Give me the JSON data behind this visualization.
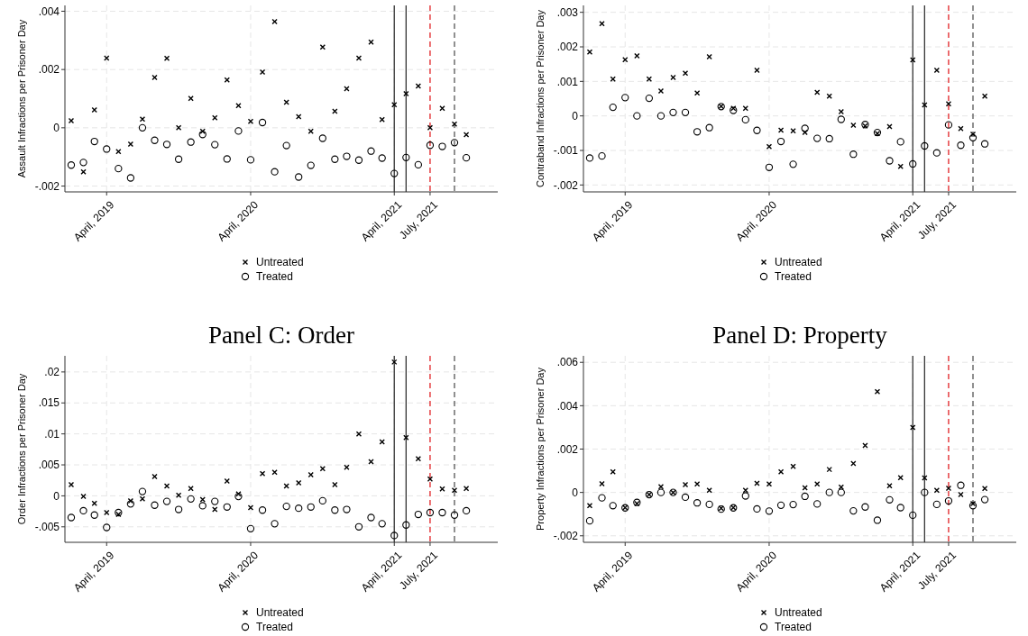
{
  "chart_data": [
    {
      "type": "scatter",
      "ylabel": "Assault Infractions per Prisoner Day",
      "x": [
        "2019-01",
        "2019-02",
        "2019-03",
        "2019-04",
        "2019-05",
        "2019-06",
        "2019-07",
        "2019-08",
        "2019-09",
        "2019-10",
        "2019-11",
        "2019-12",
        "2020-01",
        "2020-02",
        "2020-03",
        "2020-04",
        "2020-05",
        "2020-06",
        "2020-07",
        "2020-08",
        "2020-09",
        "2020-10",
        "2020-11",
        "2020-12",
        "2021-01",
        "2021-02",
        "2021-03",
        "2021-04",
        "2021-05",
        "2021-06",
        "2021-07",
        "2021-08",
        "2021-09",
        "2021-10"
      ],
      "series": [
        {
          "name": "Untreated",
          "color": "#000000",
          "marker": "cross",
          "values": [
            0.00024,
            -0.00151,
            0.00061,
            0.00239,
            -0.00082,
            -0.00056,
            0.0003,
            0.00173,
            0.00238,
            0,
            0.00101,
            -0.00012,
            0.00034,
            0.00164,
            0.00076,
            0.00022,
            0.00191,
            0.00364,
            0.00088,
            0.00038,
            -0.00012,
            0.00277,
            0.00057,
            0.00134,
            0.00239,
            0.00294,
            0.00028,
            0.00079,
            0.00117,
            0.00143,
            0,
            0.00067,
            0.00013,
            -0.00024
          ]
        },
        {
          "name": "Treated",
          "color": "#000000",
          "marker": "circle",
          "values": [
            -0.00128,
            -0.00119,
            -0.00047,
            -0.00073,
            -0.0014,
            -0.00172,
            0,
            -0.00043,
            -0.00057,
            -0.00108,
            -0.00049,
            -0.00023,
            -0.00058,
            -0.00107,
            -0.00011,
            -0.0011,
            0.00018,
            -0.00151,
            -0.00061,
            -0.00169,
            -0.00129,
            -0.00036,
            -0.00108,
            -0.00098,
            -0.00111,
            -0.0008,
            -0.00104,
            -0.00157,
            -0.00102,
            -0.00127,
            -0.0006,
            -0.00064,
            -0.00051,
            -0.00103
          ]
        }
      ],
      "xlim": [
        "2018-12-16",
        "2021-12-20"
      ],
      "xticks": [
        {
          "value": "2019-04",
          "label": "April, 2019"
        },
        {
          "value": "2020-04",
          "label": "April, 2020"
        },
        {
          "value": "2021-04",
          "label": "April, 2021"
        },
        {
          "value": "2021-07",
          "label": "July, 2021"
        }
      ],
      "ylim": [
        -0.0022,
        0.0042
      ],
      "yticks": [
        {
          "value": -0.002,
          "label": "-.002"
        },
        {
          "value": 0,
          "label": "0"
        },
        {
          "value": 0.002,
          "label": ".002"
        },
        {
          "value": 0.004,
          "label": ".004"
        }
      ],
      "grid": true,
      "legend": "bottom",
      "ref_lines": [
        {
          "axis": "x",
          "value": "2021-04",
          "color": "#333333",
          "line_style": "solid"
        },
        {
          "axis": "x",
          "value": "2021-05",
          "color": "#333333",
          "line_style": "solid"
        },
        {
          "axis": "x",
          "value": "2021-07",
          "color": "#e8272b",
          "line_style": "dashed"
        },
        {
          "axis": "x",
          "value": "2021-09",
          "color": "#555555",
          "line_style": "dashed"
        }
      ]
    },
    {
      "type": "scatter",
      "ylabel": "Contraband Infractions per Prisoner Day",
      "x": [
        "2019-01",
        "2019-02",
        "2019-03",
        "2019-04",
        "2019-05",
        "2019-06",
        "2019-07",
        "2019-08",
        "2019-09",
        "2019-10",
        "2019-11",
        "2019-12",
        "2020-01",
        "2020-02",
        "2020-03",
        "2020-04",
        "2020-05",
        "2020-06",
        "2020-07",
        "2020-08",
        "2020-09",
        "2020-10",
        "2020-11",
        "2020-12",
        "2021-01",
        "2021-02",
        "2021-03",
        "2021-04",
        "2021-05",
        "2021-06",
        "2021-07",
        "2021-08",
        "2021-09",
        "2021-10"
      ],
      "series": [
        {
          "name": "Untreated",
          "color": "#000000",
          "marker": "cross",
          "values": [
            0.00185,
            0.00267,
            0.00107,
            0.00163,
            0.00174,
            0.00107,
            0.00072,
            0.00111,
            0.00124,
            0.00066,
            0.00171,
            0.00028,
            0.00022,
            0.00022,
            0.00132,
            -0.00089,
            -0.00041,
            -0.00043,
            -0.00048,
            0.00068,
            0.00057,
            0.00012,
            -0.00027,
            -0.00029,
            -0.00051,
            -0.00031,
            -0.00146,
            0.00162,
            0.00032,
            0.00132,
            0.00035,
            -0.00037,
            -0.00053,
            0.00057
          ]
        },
        {
          "name": "Treated",
          "color": "#000000",
          "marker": "circle",
          "values": [
            -0.00122,
            -0.00116,
            0.00025,
            0.00053,
            0,
            0.00051,
            0,
            0.0001,
            0.0001,
            -0.00046,
            -0.00034,
            0.00027,
            0.00016,
            -0.00011,
            -0.00042,
            -0.00149,
            -0.00074,
            -0.0014,
            -0.00036,
            -0.00065,
            -0.00066,
            -0.0001,
            -0.00111,
            -0.00025,
            -0.00048,
            -0.0013,
            -0.00075,
            -0.00139,
            -0.00087,
            -0.00107,
            -0.00026,
            -0.00085,
            -0.00063,
            -0.00081
          ]
        }
      ],
      "xlim": [
        "2018-12-16",
        "2021-12-20"
      ],
      "xticks": [
        {
          "value": "2019-04",
          "label": "April, 2019"
        },
        {
          "value": "2020-04",
          "label": "April, 2020"
        },
        {
          "value": "2021-04",
          "label": "April, 2021"
        },
        {
          "value": "2021-07",
          "label": "July, 2021"
        }
      ],
      "ylim": [
        -0.0022,
        0.0032
      ],
      "yticks": [
        {
          "value": -0.002,
          "label": "-.002"
        },
        {
          "value": -0.001,
          "label": "-.001"
        },
        {
          "value": 0,
          "label": "0"
        },
        {
          "value": 0.001,
          "label": ".001"
        },
        {
          "value": 0.002,
          "label": ".002"
        },
        {
          "value": 0.003,
          "label": ".003"
        }
      ],
      "grid": true,
      "legend": "bottom",
      "ref_lines": [
        {
          "axis": "x",
          "value": "2021-04",
          "color": "#333333",
          "line_style": "solid"
        },
        {
          "axis": "x",
          "value": "2021-05",
          "color": "#333333",
          "line_style": "solid"
        },
        {
          "axis": "x",
          "value": "2021-07",
          "color": "#e8272b",
          "line_style": "dashed"
        },
        {
          "axis": "x",
          "value": "2021-09",
          "color": "#555555",
          "line_style": "dashed"
        }
      ]
    },
    {
      "type": "scatter",
      "title": "Panel C: Order",
      "ylabel": "Order Infractions per Prisoner Day",
      "x": [
        "2019-01",
        "2019-02",
        "2019-03",
        "2019-04",
        "2019-05",
        "2019-06",
        "2019-07",
        "2019-08",
        "2019-09",
        "2019-10",
        "2019-11",
        "2019-12",
        "2020-01",
        "2020-02",
        "2020-03",
        "2020-04",
        "2020-05",
        "2020-06",
        "2020-07",
        "2020-08",
        "2020-09",
        "2020-10",
        "2020-11",
        "2020-12",
        "2021-01",
        "2021-02",
        "2021-03",
        "2021-04",
        "2021-05",
        "2021-06",
        "2021-07",
        "2021-08",
        "2021-09",
        "2021-10"
      ],
      "series": [
        {
          "name": "Untreated",
          "color": "#000000",
          "marker": "cross",
          "values": [
            0.0018,
            -0.0001,
            -0.0012,
            -0.0027,
            -0.003,
            -0.0008,
            -0.0005,
            0.0031,
            0.0016,
            0.0001,
            0.0012,
            -0.0006,
            -0.0022,
            0.0024,
            0.0003,
            -0.0019,
            0.0036,
            0.0038,
            0.0016,
            0.0021,
            0.0034,
            0.0044,
            0.0018,
            0.0046,
            0.01,
            0.0055,
            0.0087,
            0.0216,
            0.0094,
            0.006,
            0.0027,
            0.0011,
            0.0009,
            0.0012
          ]
        },
        {
          "name": "Treated",
          "color": "#000000",
          "marker": "circle",
          "values": [
            -0.0035,
            -0.0024,
            -0.0031,
            -0.0051,
            -0.0027,
            -0.0013,
            0.0007,
            -0.0015,
            -0.0009,
            -0.0022,
            -0.0005,
            -0.0016,
            -0.0009,
            -0.0018,
            -0.0001,
            -0.0053,
            -0.0023,
            -0.0045,
            -0.0017,
            -0.002,
            -0.0018,
            -0.0008,
            -0.0023,
            -0.0022,
            -0.005,
            -0.0035,
            -0.0045,
            -0.0064,
            -0.0047,
            -0.003,
            -0.0027,
            -0.0027,
            -0.0031,
            -0.0024
          ]
        }
      ],
      "xlim": [
        "2018-12-16",
        "2021-12-20"
      ],
      "xticks": [
        {
          "value": "2019-04",
          "label": "April, 2019"
        },
        {
          "value": "2020-04",
          "label": "April, 2020"
        },
        {
          "value": "2021-04",
          "label": "April, 2021"
        },
        {
          "value": "2021-07",
          "label": "July, 2021"
        }
      ],
      "ylim": [
        -0.0075,
        0.0226
      ],
      "yticks": [
        {
          "value": -0.005,
          "label": "-.005"
        },
        {
          "value": 0,
          "label": "0"
        },
        {
          "value": 0.005,
          "label": ".005"
        },
        {
          "value": 0.01,
          "label": ".01"
        },
        {
          "value": 0.015,
          "label": ".015"
        },
        {
          "value": 0.02,
          "label": ".02"
        }
      ],
      "grid": true,
      "legend": "bottom",
      "ref_lines": [
        {
          "axis": "x",
          "value": "2021-04",
          "color": "#333333",
          "line_style": "solid"
        },
        {
          "axis": "x",
          "value": "2021-05",
          "color": "#333333",
          "line_style": "solid"
        },
        {
          "axis": "x",
          "value": "2021-07",
          "color": "#e8272b",
          "line_style": "dashed"
        },
        {
          "axis": "x",
          "value": "2021-09",
          "color": "#555555",
          "line_style": "dashed"
        }
      ]
    },
    {
      "type": "scatter",
      "title": "Panel D: Property",
      "ylabel": "Property Infractions per Prisoner Day",
      "x": [
        "2019-01",
        "2019-02",
        "2019-03",
        "2019-04",
        "2019-05",
        "2019-06",
        "2019-07",
        "2019-08",
        "2019-09",
        "2019-10",
        "2019-11",
        "2019-12",
        "2020-01",
        "2020-02",
        "2020-03",
        "2020-04",
        "2020-05",
        "2020-06",
        "2020-07",
        "2020-08",
        "2020-09",
        "2020-10",
        "2020-11",
        "2020-12",
        "2021-01",
        "2021-02",
        "2021-03",
        "2021-04",
        "2021-05",
        "2021-06",
        "2021-07",
        "2021-08",
        "2021-09",
        "2021-10"
      ],
      "series": [
        {
          "name": "Untreated",
          "color": "#000000",
          "marker": "cross",
          "values": [
            -0.00061,
            0.0004,
            0.00095,
            -0.0007,
            -0.00051,
            -0.0001,
            0.00027,
            0,
            0.00036,
            0.00039,
            0.0001,
            -0.00073,
            -0.0007,
            0.0001,
            0.00042,
            0.00039,
            0.00095,
            0.0012,
            0.00021,
            0.00039,
            0.00106,
            0.00024,
            0.00134,
            0.00217,
            0.00465,
            0.00031,
            0.00068,
            0.003,
            0.00067,
            0.0001,
            0.00019,
            -0.0001,
            -0.00051,
            0.00018
          ]
        },
        {
          "name": "Treated",
          "color": "#000000",
          "marker": "circle",
          "values": [
            -0.00131,
            -0.00025,
            -0.00061,
            -0.00071,
            -0.00046,
            -0.0001,
            0,
            0,
            -0.00022,
            -0.00048,
            -0.00055,
            -0.00077,
            -0.00071,
            -0.00016,
            -0.00076,
            -0.00086,
            -0.00059,
            -0.00056,
            -0.00018,
            -0.00053,
            0,
            0,
            -0.00085,
            -0.00067,
            -0.00128,
            -0.00034,
            -0.0007,
            -0.00105,
            0,
            -0.00055,
            -0.00039,
            0.00033,
            -0.00061,
            -0.00033
          ]
        }
      ],
      "xlim": [
        "2018-12-16",
        "2021-12-20"
      ],
      "xticks": [
        {
          "value": "2019-04",
          "label": "April, 2019"
        },
        {
          "value": "2020-04",
          "label": "April, 2020"
        },
        {
          "value": "2021-04",
          "label": "April, 2021"
        },
        {
          "value": "2021-07",
          "label": "July, 2021"
        }
      ],
      "ylim": [
        -0.0023,
        0.0063
      ],
      "yticks": [
        {
          "value": -0.002,
          "label": "-.002"
        },
        {
          "value": 0,
          "label": "0"
        },
        {
          "value": 0.002,
          "label": ".002"
        },
        {
          "value": 0.004,
          "label": ".004"
        },
        {
          "value": 0.006,
          "label": ".006"
        }
      ],
      "grid": true,
      "legend": "bottom",
      "ref_lines": [
        {
          "axis": "x",
          "value": "2021-04",
          "color": "#333333",
          "line_style": "solid"
        },
        {
          "axis": "x",
          "value": "2021-05",
          "color": "#333333",
          "line_style": "solid"
        },
        {
          "axis": "x",
          "value": "2021-07",
          "color": "#e8272b",
          "line_style": "dashed"
        },
        {
          "axis": "x",
          "value": "2021-09",
          "color": "#555555",
          "line_style": "dashed"
        }
      ]
    }
  ]
}
